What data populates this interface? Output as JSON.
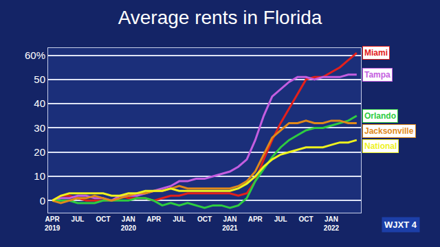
{
  "chart_data": {
    "type": "line",
    "title": "Average rents in Florida",
    "categories": [
      "APR 2019",
      null,
      null,
      "JUL",
      null,
      null,
      "OCT",
      null,
      null,
      "JAN 2020",
      null,
      null,
      "APR",
      null,
      null,
      "JUL",
      null,
      null,
      "OCT",
      null,
      null,
      "JAN 2021",
      null,
      null,
      "APR",
      null,
      null,
      "JUL",
      null,
      null,
      "OCT",
      null,
      null,
      "JAN 2022",
      null,
      null,
      null
    ],
    "series": [
      {
        "name": "Miami",
        "color": "#e3201b",
        "values": [
          0,
          2,
          2,
          1,
          0,
          0,
          0,
          0,
          2,
          1,
          1,
          1,
          0,
          1,
          2,
          2,
          3,
          3,
          3,
          3,
          3,
          3,
          2,
          3,
          8,
          17,
          25,
          32,
          38,
          44,
          50,
          51,
          51,
          53,
          55,
          58,
          61
        ]
      },
      {
        "name": "Tampa",
        "color": "#c45ee0",
        "values": [
          0,
          1,
          1,
          2,
          2,
          1,
          1,
          0,
          2,
          2,
          2,
          3,
          4,
          5,
          6,
          8,
          8,
          9,
          9,
          10,
          11,
          12,
          14,
          17,
          25,
          35,
          43,
          46,
          49,
          51,
          51,
          50,
          51,
          51,
          51,
          52,
          52
        ]
      },
      {
        "name": "Orlando",
        "color": "#2ecc40",
        "values": [
          0,
          0,
          0,
          -1,
          -1,
          -1,
          0,
          0,
          0,
          0,
          1,
          1,
          0,
          -2,
          -1,
          -2,
          -1,
          -2,
          -3,
          -2,
          -2,
          -3,
          -2,
          1,
          8,
          13,
          18,
          22,
          25,
          27,
          29,
          30,
          30,
          31,
          32,
          33,
          35
        ]
      },
      {
        "name": "Jacksonville",
        "color": "#e0891a",
        "values": [
          0,
          -1,
          0,
          1,
          1,
          2,
          1,
          0,
          1,
          2,
          3,
          3,
          4,
          4,
          5,
          6,
          5,
          5,
          5,
          5,
          5,
          5,
          6,
          8,
          12,
          19,
          26,
          29,
          32,
          32,
          33,
          32,
          32,
          33,
          33,
          32,
          32
        ]
      },
      {
        "name": "National",
        "color": "#eef21e",
        "values": [
          0,
          2,
          3,
          3,
          3,
          3,
          3,
          2,
          2,
          3,
          3,
          4,
          4,
          4,
          5,
          4,
          4,
          4,
          4,
          4,
          4,
          4,
          5,
          7,
          10,
          14,
          17,
          19,
          20,
          21,
          22,
          22,
          22,
          23,
          24,
          24,
          25
        ]
      }
    ],
    "ylim": [
      -5,
      63
    ],
    "yticks": [
      0,
      10,
      20,
      30,
      40,
      50,
      {
        "value": 60,
        "label": "60%"
      }
    ],
    "grid": true,
    "annotations": [
      "WJXT 4"
    ]
  }
}
